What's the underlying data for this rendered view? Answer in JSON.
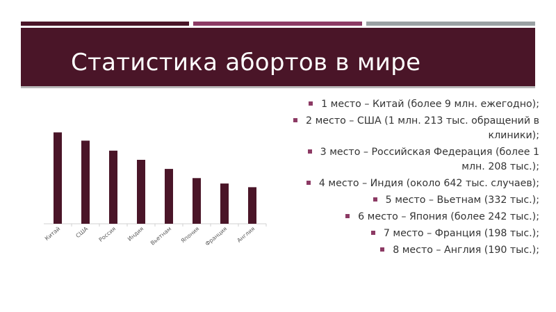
{
  "slide": {
    "title": "Статистика абортов в мире",
    "colors": {
      "primary": "#4a1528",
      "accent": "#8c3a64",
      "neutral": "#9aa1a3"
    }
  },
  "bullets": [
    "1 место – Китай (более 9 млн. ежегодно);",
    "2 место – США (1 млн. 213 тыс. обращений в клиники);",
    "3 место – Российская Федерация (более 1 млн. 208 тыс.);",
    "4 место – Индия (около 642 тыс. случаев);",
    "5 место – Вьетнам (332 тыс.);",
    "6 место – Япония (более 242 тыс.);",
    "7 место – Франция (198 тыс.);",
    "8 место – Англия (190 тыс.);"
  ],
  "chart_data": {
    "type": "bar",
    "categories": [
      "Китай",
      "США",
      "Россия",
      "Индия",
      "Вьетнам",
      "Япония",
      "Франция",
      "Англия"
    ],
    "values": [
      10,
      9.1,
      8,
      7,
      6,
      5,
      4.4,
      4
    ],
    "title": "",
    "xlabel": "",
    "ylabel": "",
    "ylim": [
      0,
      10.8
    ],
    "grid": false,
    "legend": "none",
    "bar_color": "#4a1528"
  }
}
